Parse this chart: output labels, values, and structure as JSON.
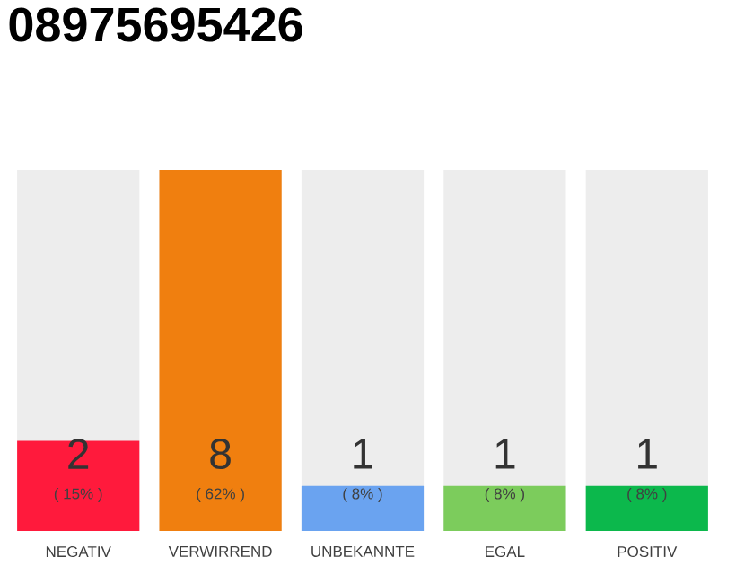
{
  "chart_data": {
    "type": "bar",
    "title": "08975695426",
    "categories": [
      "NEGATIV",
      "VERWIRREND",
      "UNBEKANNTE",
      "EGAL",
      "POSITIV"
    ],
    "values": [
      2,
      8,
      1,
      1,
      1
    ],
    "colors": [
      "#ff1a3c",
      "#f07f0f",
      "#6aa3f0",
      "#7ccc5c",
      "#0cb84c"
    ],
    "data_labels": true,
    "annotations": [
      "( 15% )",
      "( 62% )",
      "( 8% )",
      "( 8% )",
      "( 8% )"
    ]
  }
}
